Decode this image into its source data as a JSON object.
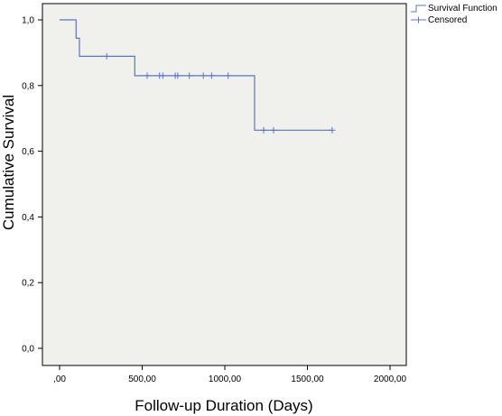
{
  "chart_data": {
    "type": "line",
    "subtype": "kaplan-meier-step",
    "xlabel": "Follow-up Duration (Days)",
    "ylabel": "Cumulative Survival",
    "xlim": [
      0,
      2000
    ],
    "ylim": [
      0,
      1
    ],
    "x_ticks": [
      0,
      500,
      1000,
      1500,
      2000
    ],
    "x_tick_labels": [
      ",00",
      "500,00",
      "1000,00",
      "1500,00",
      "2000,00"
    ],
    "y_ticks": [
      0,
      0.2,
      0.4,
      0.6,
      0.8,
      1.0
    ],
    "y_tick_labels": [
      "0,0",
      "0,2",
      "0,4",
      "0,6",
      "0,8",
      "1,0"
    ],
    "grid": false,
    "legend_position": "top-right",
    "colors": {
      "line": "#5b74c4",
      "plot_background": "#f0f0ec",
      "axes": "#000000"
    },
    "series": [
      {
        "name": "Survival Function",
        "steps": [
          {
            "x": 0,
            "y": 1.0
          },
          {
            "x": 100,
            "y": 0.944
          },
          {
            "x": 120,
            "y": 0.889
          },
          {
            "x": 455,
            "y": 0.83
          },
          {
            "x": 1180,
            "y": 0.664
          },
          {
            "x": 1650,
            "y": 0.664
          }
        ]
      },
      {
        "name": "Censored",
        "points": [
          {
            "x": 285,
            "y": 0.889
          },
          {
            "x": 530,
            "y": 0.83
          },
          {
            "x": 605,
            "y": 0.83
          },
          {
            "x": 625,
            "y": 0.83
          },
          {
            "x": 700,
            "y": 0.83
          },
          {
            "x": 715,
            "y": 0.83
          },
          {
            "x": 785,
            "y": 0.83
          },
          {
            "x": 870,
            "y": 0.83
          },
          {
            "x": 920,
            "y": 0.83
          },
          {
            "x": 1020,
            "y": 0.83
          },
          {
            "x": 1235,
            "y": 0.664
          },
          {
            "x": 1295,
            "y": 0.664
          },
          {
            "x": 1650,
            "y": 0.664
          }
        ]
      }
    ]
  }
}
